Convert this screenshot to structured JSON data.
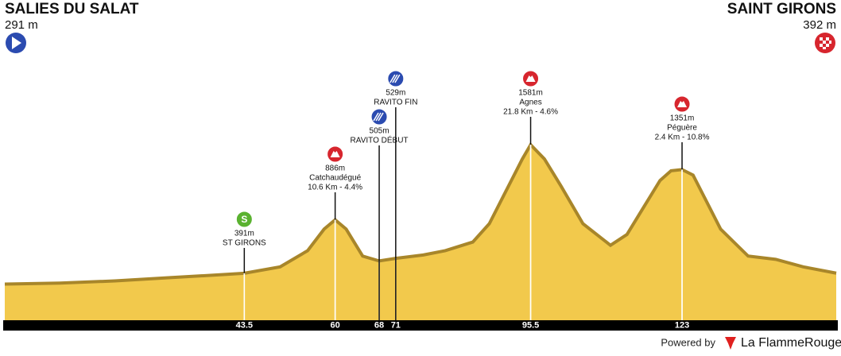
{
  "header": {
    "start_name": "SALIES DU SALAT",
    "start_altitude": "291 m",
    "finish_name": "SAINT GIRONS",
    "finish_altitude": "392 m"
  },
  "footer": {
    "powered": "Powered by",
    "brand": "La FlammeRouge"
  },
  "chart_data": {
    "type": "area",
    "color": "#f2c94c",
    "edge_color": "#a8862a",
    "x": [
      0,
      10,
      20,
      30,
      40,
      43.5,
      50,
      55,
      58,
      60,
      62,
      65,
      68,
      71,
      76,
      80,
      85,
      88,
      91,
      94,
      95.5,
      98,
      101,
      105,
      110,
      113,
      116,
      119,
      121,
      123,
      125,
      127,
      130,
      135,
      140,
      145,
      151
    ],
    "values": [
      291,
      300,
      320,
      350,
      380,
      391,
      450,
      600,
      800,
      886,
      800,
      550,
      505,
      529,
      560,
      600,
      680,
      850,
      1150,
      1450,
      1581,
      1450,
      1200,
      850,
      650,
      750,
      1000,
      1250,
      1340,
      1351,
      1300,
      1100,
      800,
      550,
      520,
      450,
      392
    ],
    "xlim": [
      0,
      151
    ],
    "ylim": [
      0,
      2200
    ],
    "xticks": [
      43.5,
      60,
      68,
      71,
      95.5,
      123
    ],
    "annotations": [
      {
        "x": 43.5,
        "icon": "sprint",
        "icon_text": "S",
        "lines": [
          "391m",
          "ST GIRONS"
        ]
      },
      {
        "x": 60,
        "icon": "climb",
        "lines": [
          "886m",
          "Catchaudégué",
          "10.6 Km - 4.4%"
        ]
      },
      {
        "x": 68,
        "icon": "feed",
        "lines": [
          "505m",
          "RAVITO DÉBUT"
        ]
      },
      {
        "x": 71,
        "icon": "feed",
        "lines": [
          "529m",
          "RAVITO FIN"
        ]
      },
      {
        "x": 95.5,
        "icon": "climb",
        "lines": [
          "1581m",
          "Agnes",
          "21.8 Km - 4.6%"
        ]
      },
      {
        "x": 123,
        "icon": "climb",
        "lines": [
          "1351m",
          "Péguère",
          "2.4 Km - 10.8%"
        ]
      }
    ]
  }
}
